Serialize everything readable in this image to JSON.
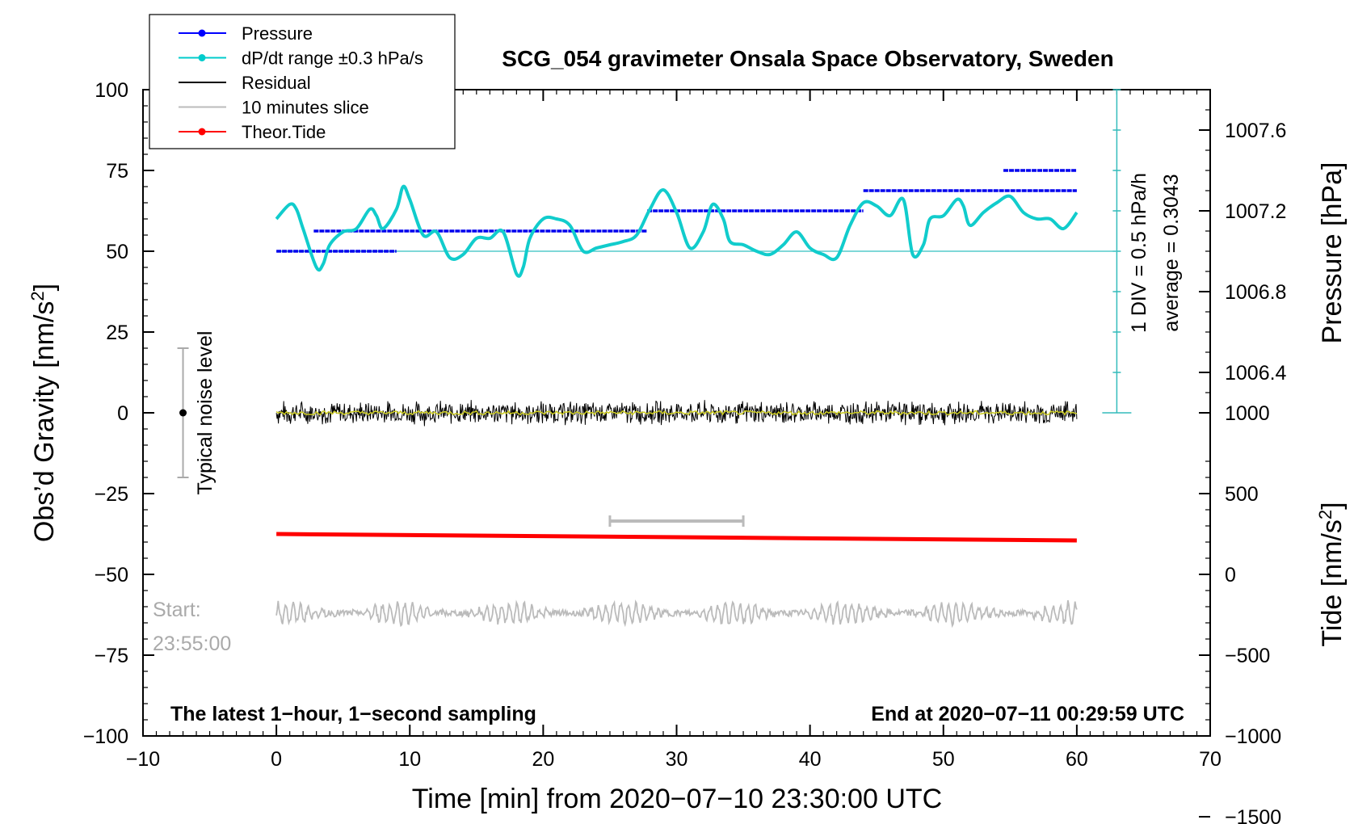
{
  "chart_data": {
    "type": "line",
    "title": "SCG_054 gravimeter Onsala Space Observatory, Sweden",
    "xlabel": "Time [min] from 2020−07−10 23:30:00 UTC",
    "ylabel_left": "Obs’d Gravity [nm/s",
    "ylabel_left_sup": "2",
    "ylabel_left_end": "]",
    "ylabel_pressure": "Pressure [hPa]",
    "ylabel_tide": "Tide [nm/s",
    "ylabel_tide_sup": "2",
    "ylabel_tide_end": "]",
    "xlim": [
      -10,
      70
    ],
    "ylim_left": [
      -100,
      100
    ],
    "x_ticks": [
      -10,
      0,
      10,
      20,
      30,
      40,
      50,
      60,
      70
    ],
    "x_tick_labels": [
      "−10",
      "0",
      "10",
      "20",
      "30",
      "40",
      "50",
      "60",
      "70"
    ],
    "y_ticks": [
      100,
      75,
      50,
      25,
      0,
      -25,
      -50,
      -75,
      -100
    ],
    "y_tick_labels": [
      "100",
      "75",
      "50",
      "25",
      "0",
      "−25",
      "−50",
      "−75",
      "−100"
    ],
    "pressure_ticks": [
      1007.6,
      1007.2,
      1006.8,
      1006.4
    ],
    "pressure_tick_labels": [
      "1007.6",
      "1007.2",
      "1006.8",
      "1006.4"
    ],
    "pressure_ref": {
      "hpa": 1007.0,
      "gravity": 50
    },
    "pressure_scale_hpa_per_25": 0.4,
    "tide_ticks": [
      1000,
      500,
      0,
      -500,
      -1000,
      -1500
    ],
    "tide_tick_labels": [
      "1000",
      "500",
      "0",
      "−500",
      "−1000",
      "−1500"
    ],
    "tide_ref": {
      "tide": 0,
      "gravity": -50
    },
    "tide_scale_per_25": 500,
    "legend": [
      {
        "label": "Pressure",
        "color": "#0000ff",
        "marker": true
      },
      {
        "label": "dP/dt range ±0.3 hPa/s",
        "color": "#00cccc",
        "marker": true
      },
      {
        "label": "Residual",
        "color": "#000000",
        "marker": false
      },
      {
        "label": "10 minutes slice",
        "color": "#bbbbbb",
        "marker": false
      },
      {
        "label": "Theor.Tide",
        "color": "#ff0000",
        "marker": true
      }
    ],
    "pressure_steps": [
      {
        "x0": 0,
        "x1": 9,
        "hpa": 1007.0
      },
      {
        "x0": 2.8,
        "x1": 27.8,
        "hpa": 1007.1
      },
      {
        "x0": 27.8,
        "x1": 44,
        "hpa": 1007.2
      },
      {
        "x0": 44,
        "x1": 60,
        "hpa": 1007.3
      },
      {
        "x0": 54.5,
        "x1": 60,
        "hpa": 1007.4
      }
    ],
    "dpdt_points": [
      [
        0,
        60
      ],
      [
        1,
        64.5
      ],
      [
        1.5,
        63
      ],
      [
        2,
        57
      ],
      [
        3,
        45
      ],
      [
        3.5,
        46
      ],
      [
        4,
        52
      ],
      [
        5,
        56
      ],
      [
        6,
        57
      ],
      [
        7,
        63
      ],
      [
        7.5,
        61
      ],
      [
        8,
        57
      ],
      [
        9,
        63
      ],
      [
        9.5,
        70
      ],
      [
        10,
        66
      ],
      [
        11,
        55
      ],
      [
        12,
        56
      ],
      [
        13,
        48
      ],
      [
        14,
        49
      ],
      [
        15,
        54
      ],
      [
        16,
        54
      ],
      [
        17,
        56
      ],
      [
        18,
        43
      ],
      [
        18.5,
        45
      ],
      [
        19,
        54
      ],
      [
        20,
        60
      ],
      [
        21,
        60
      ],
      [
        22,
        58
      ],
      [
        23,
        50
      ],
      [
        24,
        51
      ],
      [
        25,
        52
      ],
      [
        26,
        53
      ],
      [
        27,
        55
      ],
      [
        28,
        63
      ],
      [
        29,
        69
      ],
      [
        30,
        62
      ],
      [
        31,
        51
      ],
      [
        32,
        56
      ],
      [
        32.7,
        64.5
      ],
      [
        33.5,
        60
      ],
      [
        34,
        53
      ],
      [
        35,
        52
      ],
      [
        36,
        50
      ],
      [
        37,
        49
      ],
      [
        38,
        52
      ],
      [
        39,
        56
      ],
      [
        40,
        51
      ],
      [
        41,
        49
      ],
      [
        42,
        48
      ],
      [
        43,
        58
      ],
      [
        44,
        65
      ],
      [
        45,
        64
      ],
      [
        46,
        61
      ],
      [
        47,
        66
      ],
      [
        47.7,
        49
      ],
      [
        48.5,
        52
      ],
      [
        49,
        60
      ],
      [
        50,
        61
      ],
      [
        51,
        66
      ],
      [
        51.5,
        64
      ],
      [
        52,
        58
      ],
      [
        53,
        62
      ],
      [
        54,
        65
      ],
      [
        55,
        67
      ],
      [
        56,
        62
      ],
      [
        57,
        60
      ],
      [
        58,
        60
      ],
      [
        59,
        57
      ],
      [
        60,
        62
      ]
    ],
    "dpdt_hline": 50,
    "dpdt_scale": {
      "x": 63,
      "bottom": 0,
      "top": 100,
      "step": 12.5
    },
    "scale_text1": "1 DIV = 0.5 hPa/h",
    "scale_text2": "average = 0.3043",
    "residual": {
      "x0": 0,
      "x1": 60,
      "center": 0,
      "amplitude": 3
    },
    "tide_line": {
      "x0": 0,
      "x1": 60,
      "y0": -37.5,
      "y1": -39.5
    },
    "slice_marker": {
      "x0": 25,
      "x1": 35,
      "y": -33.5
    },
    "slice_trace": {
      "x0": 0,
      "x1": 60,
      "center": -62,
      "amplitude": 3
    },
    "noise_level": {
      "x": -7,
      "y0": -20,
      "y1": 20,
      "center": 0
    },
    "noise_label": "Typical noise level",
    "start_label": "Start:",
    "start_time": "23:55:00",
    "note_left": "The latest 1−hour, 1−second sampling",
    "note_right": "End at 2020−07−11 00:29:59 UTC"
  }
}
